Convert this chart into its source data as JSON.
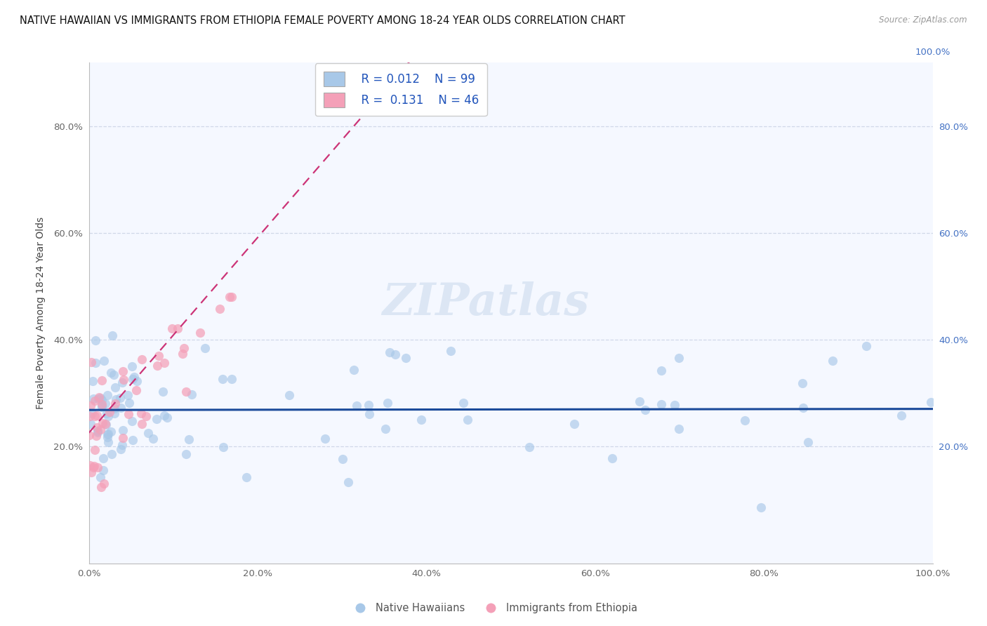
{
  "title": "NATIVE HAWAIIAN VS IMMIGRANTS FROM ETHIOPIA FEMALE POVERTY AMONG 18-24 YEAR OLDS CORRELATION CHART",
  "source": "Source: ZipAtlas.com",
  "ylabel": "Female Poverty Among 18-24 Year Olds",
  "xlim": [
    0.0,
    1.0
  ],
  "ylim": [
    -0.02,
    0.92
  ],
  "color_blue": "#a8c8e8",
  "color_pink": "#f4a0b8",
  "line_blue": "#1a4a9a",
  "line_pink": "#cc3377",
  "legend_R1": "R = 0.012",
  "legend_N1": "N = 99",
  "legend_R2": "R =  0.131",
  "legend_N2": "N = 46",
  "watermark": "ZIPatlas",
  "background_color": "#ffffff",
  "plot_bg_color": "#f5f8ff",
  "gridline_color": "#d0d8e8",
  "ytick_positions": [
    0.0,
    0.2,
    0.4,
    0.6,
    0.8
  ],
  "ytick_labels_left": [
    "",
    "20.0%",
    "40.0%",
    "60.0%",
    "80.0%"
  ],
  "ytick_labels_right": [
    "20.0%",
    "40.0%",
    "60.0%",
    "80.0%"
  ],
  "xtick_positions": [
    0.0,
    0.2,
    0.4,
    0.6,
    0.8,
    1.0
  ],
  "xtick_labels": [
    "0.0%",
    "20.0%",
    "40.0%",
    "60.0%",
    "80.0%",
    "100.0%"
  ]
}
